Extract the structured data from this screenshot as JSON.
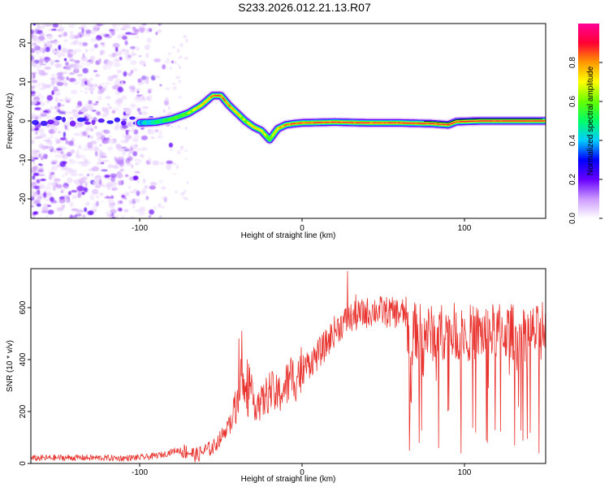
{
  "title": "S233.2026.012.21.13.R07",
  "colors": {
    "series": "#e8332e",
    "background": "#ffffff",
    "axes": "#000000"
  },
  "chart_data": [
    {
      "type": "heatmap",
      "title": "S233.2026.012.21.13.R07",
      "xlabel": "Height of straight line (km)",
      "ylabel": "Frequency (Hz)",
      "xlim": [
        -167,
        150
      ],
      "ylim": [
        -25,
        25
      ],
      "xticks": [
        -100,
        0,
        100
      ],
      "xtick_labels": [
        "-100",
        "0",
        "100"
      ],
      "yticks": [
        20,
        10,
        0,
        -10,
        -20
      ],
      "ytick_labels": [
        "20",
        "10",
        "0",
        "-10",
        "-20"
      ],
      "ridge": {
        "x": [
          -167,
          -150,
          -130,
          -110,
          -100,
          -90,
          -80,
          -70,
          -62,
          -55,
          -50,
          -45,
          -40,
          -35,
          -30,
          -25,
          -20,
          -15,
          -10,
          -5,
          0,
          20,
          40,
          60,
          80,
          90,
          95,
          110,
          130,
          150
        ],
        "y": [
          -0.5,
          -0.8,
          -0.3,
          -0.5,
          -0.5,
          -0.3,
          0.5,
          2.0,
          4.0,
          6.5,
          6.5,
          4.0,
          2.0,
          0.0,
          -1.5,
          -2.5,
          -4.8,
          -2.0,
          -1.0,
          -0.7,
          -0.5,
          -0.3,
          -0.5,
          -0.5,
          -0.7,
          -1.0,
          -0.2,
          0.0,
          0.0,
          0.0
        ],
        "amplitude": [
          0.3,
          0.35,
          0.3,
          0.35,
          0.4,
          0.45,
          0.55,
          0.6,
          0.75,
          0.9,
          0.9,
          0.85,
          0.7,
          0.65,
          0.7,
          0.7,
          0.55,
          0.75,
          0.85,
          0.9,
          0.9,
          0.95,
          0.9,
          0.95,
          0.9,
          0.95,
          0.95,
          0.95,
          0.95,
          0.95
        ]
      },
      "noise_region_x": [
        -167,
        -85
      ],
      "colorbar": {
        "label": "Normalized spectral amplitude",
        "range": [
          0,
          1
        ],
        "ticks": [
          0.0,
          0.2,
          0.4,
          0.6,
          0.8
        ],
        "tick_labels": [
          "0.0",
          "0.2",
          "0.4",
          "0.6",
          "0.8"
        ],
        "stops": [
          "#ffffff",
          "#cc99ff",
          "#6600ff",
          "#0000ff",
          "#00ccff",
          "#00ff66",
          "#66ff00",
          "#ffff00",
          "#ff9900",
          "#ff0033",
          "#ff0099"
        ]
      }
    },
    {
      "type": "line",
      "title": "",
      "xlabel": "Height of straight line (km)",
      "ylabel": "SNR (10 * v/v)",
      "xlim": [
        -167,
        150
      ],
      "ylim": [
        0,
        750
      ],
      "xticks": [
        -100,
        0,
        100
      ],
      "xtick_labels": [
        "-100",
        "0",
        "100"
      ],
      "yticks": [
        0,
        200,
        400,
        600
      ],
      "ytick_labels": [
        "0",
        "200",
        "400",
        "600"
      ],
      "series": [
        {
          "name": "SNR",
          "x": [
            -167,
            -150,
            -130,
            -110,
            -95,
            -85,
            -78,
            -70,
            -65,
            -60,
            -55,
            -50,
            -45,
            -40,
            -38,
            -35,
            -30,
            -25,
            -20,
            -15,
            -10,
            -5,
            0,
            5,
            10,
            15,
            20,
            25,
            30,
            35,
            40,
            45,
            50,
            55,
            60,
            64,
            65,
            70,
            80,
            90,
            100,
            110,
            120,
            130,
            140,
            150
          ],
          "y": [
            20,
            22,
            22,
            20,
            25,
            35,
            50,
            45,
            30,
            50,
            60,
            100,
            150,
            230,
            330,
            260,
            240,
            230,
            280,
            260,
            300,
            330,
            360,
            390,
            420,
            460,
            510,
            540,
            560,
            570,
            580,
            590,
            585,
            580,
            580,
            575,
            520,
            510,
            500,
            510,
            505,
            500,
            510,
            505,
            500,
            500
          ],
          "spikes": [
            {
              "x": -39,
              "y": 480
            },
            {
              "x": -37,
              "y": 510
            },
            {
              "x": 28,
              "y": 740
            },
            {
              "x": 33,
              "y": 650
            },
            {
              "x": 66,
              "y": 50
            },
            {
              "x": 72,
              "y": 80
            },
            {
              "x": 84,
              "y": 60
            },
            {
              "x": 98,
              "y": 40
            },
            {
              "x": 114,
              "y": 80
            },
            {
              "x": 131,
              "y": 70
            },
            {
              "x": 146,
              "y": 40
            },
            {
              "x": 148,
              "y": 620
            }
          ]
        }
      ]
    }
  ]
}
